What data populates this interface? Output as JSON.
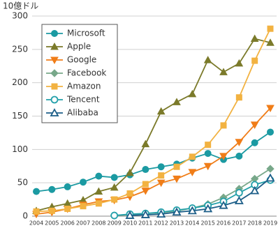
{
  "chart_data": {
    "type": "line",
    "y_label": "10億ドル",
    "categories": [
      "2004",
      "2005",
      "2006",
      "2007",
      "2008",
      "2009",
      "2010",
      "2011",
      "2012",
      "2013",
      "2014",
      "2015",
      "2016",
      "2017",
      "2018",
      "2019"
    ],
    "ylim": [
      0,
      300
    ],
    "yticks": [
      0,
      50,
      100,
      150,
      200,
      250,
      300
    ],
    "grid": true,
    "legend": "top-left",
    "series": [
      {
        "name": "Microsoft",
        "color": "#1b9aa2",
        "marker": "circle",
        "filled": true,
        "values": [
          37,
          40,
          44,
          51,
          60,
          58,
          62,
          70,
          74,
          78,
          87,
          94,
          85,
          90,
          110,
          126
        ]
      },
      {
        "name": "Apple",
        "color": "#7b7a2a",
        "marker": "triangle",
        "filled": true,
        "values": [
          8,
          14,
          19,
          24,
          37,
          43,
          65,
          108,
          157,
          171,
          183,
          234,
          216,
          229,
          266,
          260
        ]
      },
      {
        "name": "Google",
        "color": "#f07d18",
        "marker": "triangle-down",
        "filled": true,
        "values": [
          3,
          6,
          11,
          17,
          22,
          24,
          29,
          38,
          50,
          56,
          66,
          75,
          90,
          111,
          137,
          162
        ]
      },
      {
        "name": "Facebook",
        "color": "#78a88a",
        "marker": "diamond",
        "filled": true,
        "values": [
          null,
          null,
          null,
          null,
          null,
          1,
          2,
          4,
          5,
          8,
          12,
          18,
          28,
          41,
          56,
          71
        ]
      },
      {
        "name": "Amazon",
        "color": "#f2b241",
        "marker": "square",
        "filled": true,
        "values": [
          7,
          8,
          11,
          15,
          19,
          25,
          34,
          48,
          61,
          74,
          89,
          107,
          136,
          178,
          233,
          281
        ]
      },
      {
        "name": "Tencent",
        "color": "#23a0aa",
        "marker": "circle",
        "filled": false,
        "values": [
          null,
          null,
          null,
          null,
          null,
          1,
          3,
          4,
          6,
          9,
          12,
          16,
          22,
          35,
          47,
          54
        ]
      },
      {
        "name": "Alibaba",
        "color": "#1c5e88",
        "marker": "triangle",
        "filled": false,
        "values": [
          null,
          null,
          null,
          null,
          null,
          null,
          1,
          2,
          3,
          6,
          8,
          11,
          16,
          23,
          38,
          57
        ]
      }
    ]
  }
}
